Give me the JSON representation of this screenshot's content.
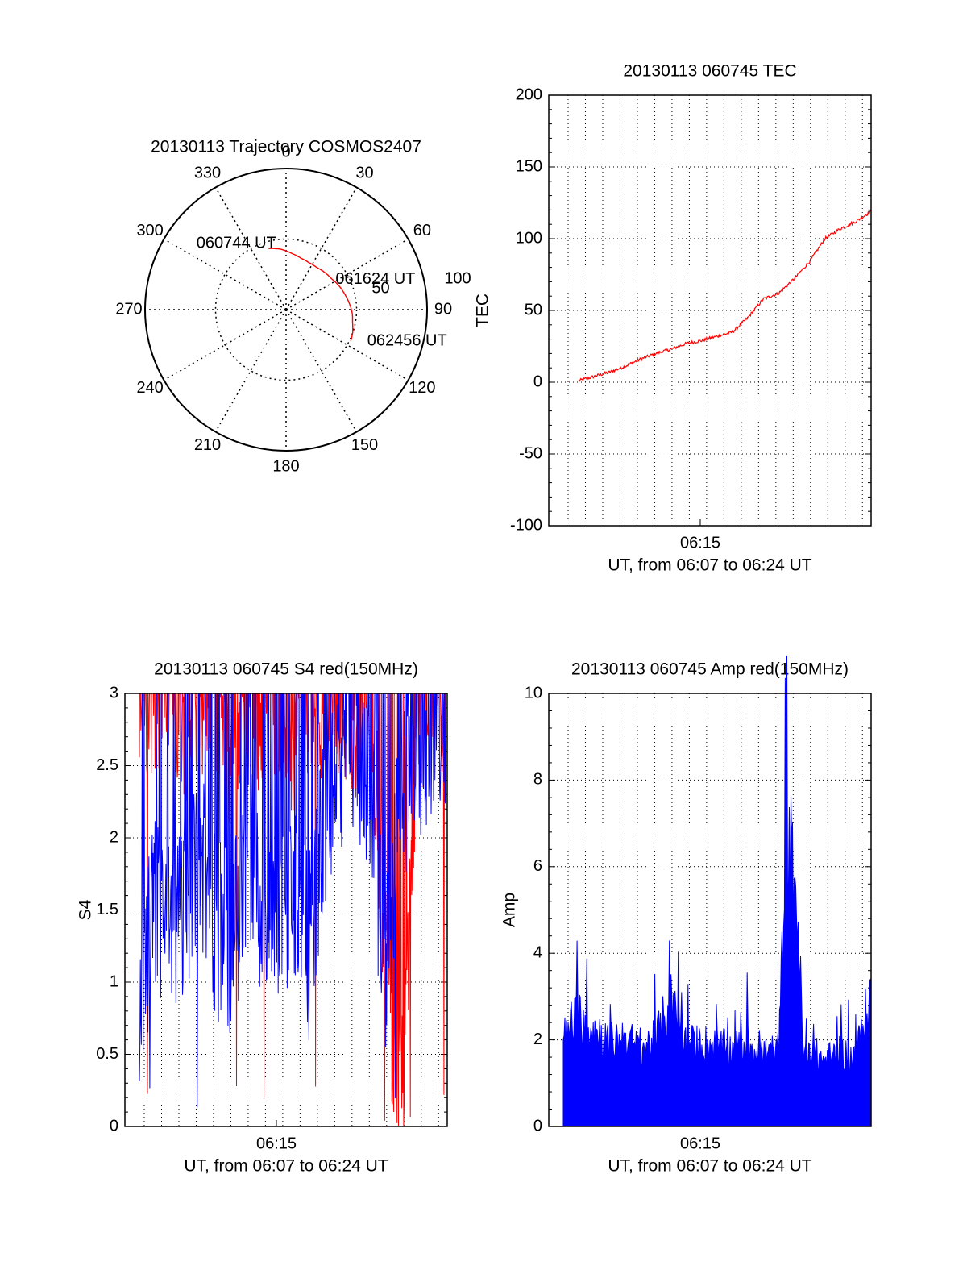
{
  "chart_data": [
    {
      "type": "polar",
      "title": "20130113 Trajectory COSMOS2407",
      "azimuth_labels": [
        "0",
        "30",
        "60",
        "90",
        "120",
        "150",
        "180",
        "210",
        "240",
        "270",
        "300",
        "330"
      ],
      "elevation_ring_labels": [
        "50",
        "100"
      ],
      "rlim": [
        0,
        100
      ],
      "grid": true,
      "series": [
        {
          "color": "#ff0000",
          "points": [
            [
              344,
              45
            ],
            [
              355,
              43
            ],
            [
              6,
              40
            ],
            [
              16,
              38
            ],
            [
              26,
              37
            ],
            [
              36,
              37
            ],
            [
              46,
              38
            ],
            [
              56,
              39
            ],
            [
              65,
              41
            ],
            [
              75,
              43
            ],
            [
              84,
              45
            ],
            [
              93,
              47
            ],
            [
              101,
              48
            ],
            [
              109,
              50
            ],
            [
              116,
              51
            ]
          ]
        }
      ],
      "annotations": [
        {
          "text": "060744 UT",
          "az": 344,
          "r": 45
        },
        {
          "text": "061624 UT",
          "az": 55,
          "r": 39
        },
        {
          "text": "062456 UT",
          "az": 116,
          "r": 51
        }
      ]
    },
    {
      "type": "line",
      "title": "20130113 060745 TEC",
      "ylabel": "TEC",
      "xlabel": "UT, from 06:07 to 06:24 UT",
      "x_tick_label": "06:15",
      "ylim": [
        -100,
        200
      ],
      "y_ticks": [
        "-100",
        "-50",
        "0",
        "50",
        "100",
        "150",
        "200"
      ],
      "grid": true,
      "series": [
        {
          "color": "#ff0000",
          "t": [
            0.05,
            0.1,
            0.15,
            0.2,
            0.25,
            0.3,
            0.35,
            0.4,
            0.45,
            0.5,
            0.55,
            0.6,
            0.65,
            0.7,
            0.75,
            0.8,
            0.85,
            0.9,
            0.95,
            1.0
          ],
          "values": [
            1,
            4,
            7,
            11,
            16,
            20,
            23,
            27,
            29,
            32,
            35,
            45,
            58,
            62,
            72,
            84,
            100,
            107,
            112,
            119
          ]
        }
      ]
    },
    {
      "type": "line",
      "title": "20130113 060745 S4 red(150MHz)",
      "ylabel": "S4",
      "xlabel": "UT, from 06:07 to 06:24 UT",
      "x_tick_label": "06:15",
      "ylim": [
        0,
        3
      ],
      "y_ticks": [
        "0",
        "0.5",
        "1",
        "1.5",
        "2",
        "2.5",
        "3"
      ],
      "grid": true,
      "series": [
        {
          "color": "#ff0000",
          "t": [
            0.02,
            0.05,
            0.1,
            0.15,
            0.2,
            0.25,
            0.3,
            0.35,
            0.4,
            0.45,
            0.5,
            0.55,
            0.6,
            0.65,
            0.7,
            0.75,
            0.8,
            0.82,
            0.84,
            0.86,
            0.9,
            0.95,
            1.0
          ],
          "values": [
            2.9,
            3.0,
            3.0,
            2.8,
            2.9,
            3.0,
            2.6,
            3.0,
            2.8,
            3.0,
            2.7,
            3.0,
            2.9,
            3.0,
            2.8,
            3.0,
            1.2,
            0.6,
            0.45,
            0.5,
            2.8,
            3.0,
            3.0
          ]
        },
        {
          "color": "#0000ff",
          "t": [
            0.0,
            0.05,
            0.1,
            0.15,
            0.2,
            0.25,
            0.3,
            0.35,
            0.4,
            0.45,
            0.5,
            0.55,
            0.6,
            0.65,
            0.7,
            0.75,
            0.8,
            0.85,
            0.9,
            0.95,
            1.0
          ],
          "values": [
            0.85,
            1.5,
            1.3,
            1.6,
            1.8,
            1.4,
            1.2,
            1.9,
            1.5,
            1.3,
            1.7,
            1.2,
            2.1,
            2.5,
            2.7,
            2.4,
            1.0,
            2.3,
            2.6,
            2.8,
            2.9
          ]
        }
      ]
    },
    {
      "type": "bar",
      "title": "20130113 060745 Amp red(150MHz)",
      "ylabel": "Amp",
      "xlabel": "UT, from 06:07 to 06:24 UT",
      "x_tick_label": "06:15",
      "ylim": [
        0,
        10
      ],
      "y_ticks": [
        "0",
        "2",
        "4",
        "6",
        "8",
        "10"
      ],
      "grid": true,
      "series": [
        {
          "color": "#0000ff",
          "t": [
            0.0,
            0.05,
            0.1,
            0.15,
            0.2,
            0.25,
            0.3,
            0.35,
            0.4,
            0.45,
            0.5,
            0.55,
            0.6,
            0.65,
            0.7,
            0.72,
            0.74,
            0.76,
            0.78,
            0.8,
            0.85,
            0.9,
            0.95,
            1.0
          ],
          "values": [
            2.5,
            3.2,
            2.8,
            2.4,
            2.6,
            2.2,
            2.5,
            3.6,
            2.3,
            2.4,
            2.3,
            2.2,
            2.4,
            2.1,
            2.2,
            7.0,
            7.8,
            6.5,
            2.0,
            2.2,
            1.9,
            2.1,
            2.0,
            3.9
          ]
        }
      ]
    }
  ]
}
